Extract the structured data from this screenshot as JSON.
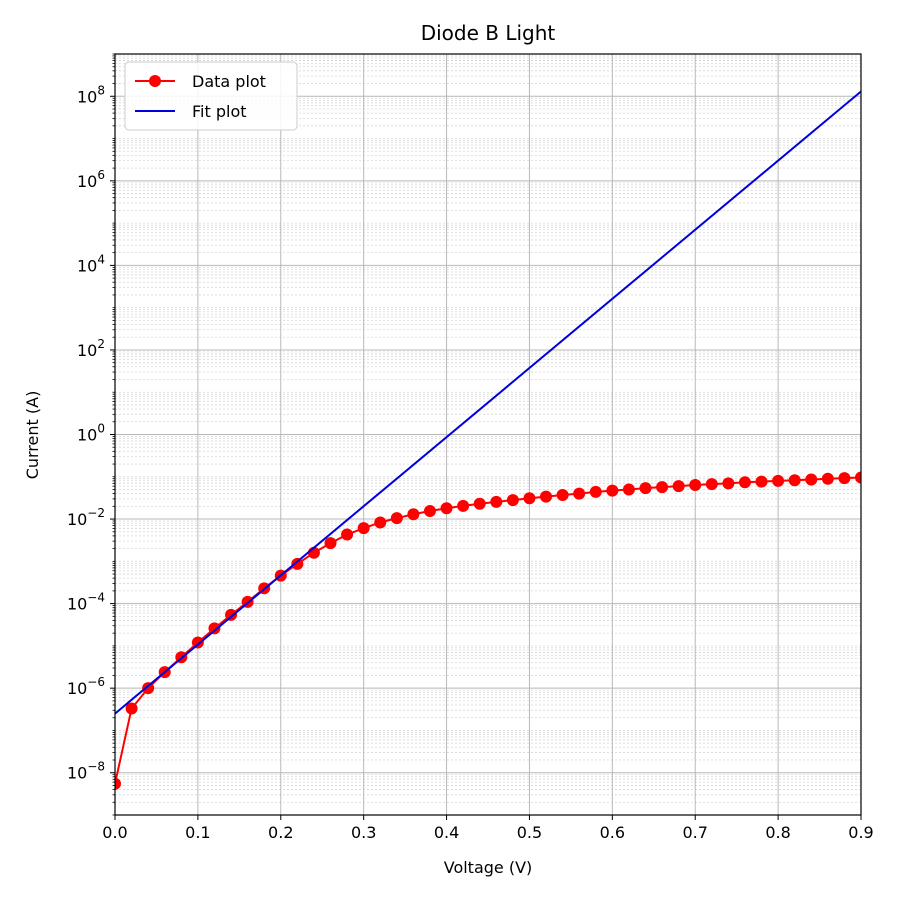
{
  "chart_data": {
    "type": "line",
    "title": "Diode B Light",
    "xlabel": "Voltage (V)",
    "ylabel": "Current (A)",
    "xlim": [
      0.0,
      0.9
    ],
    "ylim": [
      1e-09,
      1000000000.0
    ],
    "yscale": "log",
    "grid": "on",
    "legend_position": "top-left",
    "x_ticks": [
      "0.0",
      "0.1",
      "0.2",
      "0.3",
      "0.4",
      "0.5",
      "0.6",
      "0.7",
      "0.8",
      "0.9"
    ],
    "y_ticks": [
      {
        "base": "10",
        "exp": "−8",
        "value": 1e-08
      },
      {
        "base": "10",
        "exp": "−6",
        "value": 1e-06
      },
      {
        "base": "10",
        "exp": "−4",
        "value": 0.0001
      },
      {
        "base": "10",
        "exp": "−2",
        "value": 0.01
      },
      {
        "base": "10",
        "exp": "0",
        "value": 1
      },
      {
        "base": "10",
        "exp": "2",
        "value": 100.0
      },
      {
        "base": "10",
        "exp": "4",
        "value": 10000.0
      },
      {
        "base": "10",
        "exp": "6",
        "value": 1000000.0
      },
      {
        "base": "10",
        "exp": "8",
        "value": 100000000.0
      }
    ],
    "series": [
      {
        "name": "Data plot",
        "color": "#ff0000",
        "style": "line-marker",
        "x": [
          0.0,
          0.02,
          0.04,
          0.06,
          0.08,
          0.1,
          0.12,
          0.14,
          0.16,
          0.18,
          0.2,
          0.22,
          0.24,
          0.26,
          0.28,
          0.3,
          0.32,
          0.34,
          0.36,
          0.38,
          0.4,
          0.42,
          0.44,
          0.46,
          0.48,
          0.5,
          0.52,
          0.54,
          0.56,
          0.58,
          0.6,
          0.62,
          0.64,
          0.66,
          0.68,
          0.7,
          0.72,
          0.74,
          0.76,
          0.78,
          0.8,
          0.82,
          0.84,
          0.86,
          0.88,
          0.9
        ],
        "y": [
          5.5e-09,
          3.3e-07,
          1e-06,
          2.4e-06,
          5.4e-06,
          1.2e-05,
          2.6e-05,
          5.4e-05,
          0.00011,
          0.00023,
          0.00046,
          0.00087,
          0.0016,
          0.0027,
          0.0043,
          0.0061,
          0.0083,
          0.0105,
          0.013,
          0.0155,
          0.018,
          0.0205,
          0.023,
          0.0255,
          0.028,
          0.031,
          0.034,
          0.037,
          0.04,
          0.044,
          0.047,
          0.05,
          0.054,
          0.057,
          0.06,
          0.064,
          0.067,
          0.07,
          0.074,
          0.077,
          0.08,
          0.083,
          0.086,
          0.09,
          0.093,
          0.096
        ]
      },
      {
        "name": "Fit plot",
        "color": "#0000dd",
        "style": "line",
        "x": [
          0.0,
          0.9
        ],
        "y": [
          2.5e-07,
          130000000.0
        ]
      }
    ]
  }
}
